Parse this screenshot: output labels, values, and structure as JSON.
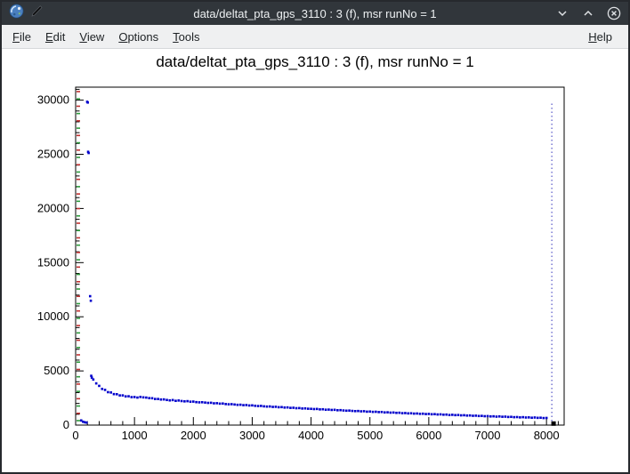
{
  "window": {
    "title": "data/deltat_pta_gps_3110 : 3 (f), msr runNo = 1",
    "icons": {
      "app": "root-logo-icon",
      "edit": "pencil-icon",
      "minimize": "chevron-down-icon",
      "maximize": "chevron-up-icon",
      "close": "circle-close-icon"
    }
  },
  "menubar": {
    "items": [
      {
        "label": "File"
      },
      {
        "label": "Edit"
      },
      {
        "label": "View"
      },
      {
        "label": "Options"
      },
      {
        "label": "Tools"
      }
    ],
    "help_label": "Help"
  },
  "chart_data": {
    "type": "scatter",
    "title": "data/deltat_pta_gps_3110 : 3 (f), msr runNo = 1",
    "xlabel": "",
    "ylabel": "",
    "xlim": [
      0,
      8300
    ],
    "ylim": [
      0,
      31200
    ],
    "x_ticks": [
      0,
      1000,
      2000,
      3000,
      4000,
      5000,
      6000,
      7000,
      8000
    ],
    "y_ticks": [
      0,
      5000,
      10000,
      15000,
      20000,
      25000,
      30000
    ],
    "x_minor_step": 200,
    "y_minor_step": 1000,
    "grid": false,
    "legend": false,
    "marker_color": "#0000cc",
    "marker_size": 2.6,
    "cutoff_line": {
      "x": 8090,
      "y0": 0,
      "y1": 29800,
      "color": "#3333bb",
      "dash": "1.5 3"
    },
    "end_marker": {
      "x": 8120,
      "y": 140,
      "size": 5,
      "color": "#000000"
    },
    "axis_dashes": {
      "count": 46,
      "colors": [
        "#c03030",
        "#2e9b3d"
      ]
    },
    "points": [
      [
        95,
        430
      ],
      [
        125,
        310
      ],
      [
        155,
        260
      ],
      [
        185,
        230
      ],
      [
        196,
        29850
      ],
      [
        206,
        29780
      ],
      [
        212,
        25230
      ],
      [
        221,
        25120
      ],
      [
        246,
        11900
      ],
      [
        258,
        11480
      ],
      [
        265,
        4550
      ],
      [
        275,
        4380
      ],
      [
        300,
        4210
      ],
      [
        350,
        3850
      ],
      [
        400,
        3620
      ],
      [
        450,
        3340
      ],
      [
        500,
        3250
      ],
      [
        550,
        3040
      ],
      [
        600,
        3010
      ],
      [
        650,
        2860
      ],
      [
        700,
        2850
      ],
      [
        750,
        2740
      ],
      [
        800,
        2740
      ],
      [
        850,
        2650
      ],
      [
        900,
        2660
      ],
      [
        950,
        2580
      ],
      [
        1000,
        2590
      ],
      [
        1050,
        2540
      ],
      [
        1100,
        2600
      ],
      [
        1150,
        2560
      ],
      [
        1200,
        2540
      ],
      [
        1250,
        2490
      ],
      [
        1300,
        2480
      ],
      [
        1350,
        2410
      ],
      [
        1400,
        2410
      ],
      [
        1450,
        2360
      ],
      [
        1500,
        2370
      ],
      [
        1550,
        2320
      ],
      [
        1600,
        2280
      ],
      [
        1650,
        2310
      ],
      [
        1700,
        2240
      ],
      [
        1750,
        2270
      ],
      [
        1800,
        2220
      ],
      [
        1850,
        2190
      ],
      [
        1900,
        2210
      ],
      [
        1950,
        2160
      ],
      [
        2000,
        2170
      ],
      [
        2050,
        2120
      ],
      [
        2100,
        2100
      ],
      [
        2150,
        2110
      ],
      [
        2200,
        2080
      ],
      [
        2250,
        2050
      ],
      [
        2300,
        2060
      ],
      [
        2350,
        2010
      ],
      [
        2400,
        2020
      ],
      [
        2450,
        1980
      ],
      [
        2500,
        1990
      ],
      [
        2550,
        1940
      ],
      [
        2600,
        1920
      ],
      [
        2650,
        1930
      ],
      [
        2700,
        1900
      ],
      [
        2750,
        1870
      ],
      [
        2800,
        1880
      ],
      [
        2850,
        1840
      ],
      [
        2900,
        1850
      ],
      [
        2950,
        1810
      ],
      [
        3000,
        1820
      ],
      [
        3050,
        1780
      ],
      [
        3100,
        1760
      ],
      [
        3150,
        1770
      ],
      [
        3200,
        1730
      ],
      [
        3250,
        1710
      ],
      [
        3300,
        1720
      ],
      [
        3350,
        1680
      ],
      [
        3400,
        1690
      ],
      [
        3450,
        1650
      ],
      [
        3500,
        1660
      ],
      [
        3550,
        1620
      ],
      [
        3600,
        1630
      ],
      [
        3650,
        1590
      ],
      [
        3700,
        1600
      ],
      [
        3750,
        1560
      ],
      [
        3800,
        1570
      ],
      [
        3850,
        1530
      ],
      [
        3900,
        1540
      ],
      [
        3950,
        1510
      ],
      [
        4000,
        1500
      ],
      [
        4050,
        1480
      ],
      [
        4100,
        1490
      ],
      [
        4150,
        1450
      ],
      [
        4200,
        1460
      ],
      [
        4250,
        1420
      ],
      [
        4300,
        1430
      ],
      [
        4350,
        1400
      ],
      [
        4400,
        1410
      ],
      [
        4450,
        1370
      ],
      [
        4500,
        1380
      ],
      [
        4550,
        1350
      ],
      [
        4600,
        1330
      ],
      [
        4650,
        1340
      ],
      [
        4700,
        1310
      ],
      [
        4750,
        1290
      ],
      [
        4800,
        1300
      ],
      [
        4850,
        1270
      ],
      [
        4900,
        1280
      ],
      [
        4950,
        1240
      ],
      [
        5000,
        1250
      ],
      [
        5050,
        1220
      ],
      [
        5100,
        1230
      ],
      [
        5150,
        1200
      ],
      [
        5200,
        1210
      ],
      [
        5250,
        1170
      ],
      [
        5300,
        1180
      ],
      [
        5350,
        1150
      ],
      [
        5400,
        1160
      ],
      [
        5450,
        1130
      ],
      [
        5500,
        1140
      ],
      [
        5550,
        1100
      ],
      [
        5600,
        1110
      ],
      [
        5650,
        1080
      ],
      [
        5700,
        1090
      ],
      [
        5750,
        1060
      ],
      [
        5800,
        1070
      ],
      [
        5850,
        1040
      ],
      [
        5900,
        1050
      ],
      [
        5950,
        1020
      ],
      [
        6000,
        1030
      ],
      [
        6050,
        1000
      ],
      [
        6100,
        1010
      ],
      [
        6150,
        980
      ],
      [
        6200,
        990
      ],
      [
        6250,
        960
      ],
      [
        6300,
        970
      ],
      [
        6350,
        930
      ],
      [
        6400,
        950
      ],
      [
        6450,
        920
      ],
      [
        6500,
        930
      ],
      [
        6550,
        900
      ],
      [
        6600,
        910
      ],
      [
        6650,
        880
      ],
      [
        6700,
        890
      ],
      [
        6750,
        860
      ],
      [
        6800,
        870
      ],
      [
        6850,
        840
      ],
      [
        6900,
        850
      ],
      [
        6950,
        820
      ],
      [
        7000,
        830
      ],
      [
        7050,
        800
      ],
      [
        7100,
        810
      ],
      [
        7150,
        780
      ],
      [
        7200,
        800
      ],
      [
        7250,
        770
      ],
      [
        7300,
        780
      ],
      [
        7350,
        750
      ],
      [
        7400,
        760
      ],
      [
        7450,
        730
      ],
      [
        7500,
        740
      ],
      [
        7550,
        710
      ],
      [
        7600,
        730
      ],
      [
        7650,
        700
      ],
      [
        7700,
        710
      ],
      [
        7750,
        680
      ],
      [
        7800,
        700
      ],
      [
        7850,
        670
      ],
      [
        7900,
        680
      ],
      [
        7950,
        650
      ],
      [
        8000,
        660
      ]
    ]
  }
}
